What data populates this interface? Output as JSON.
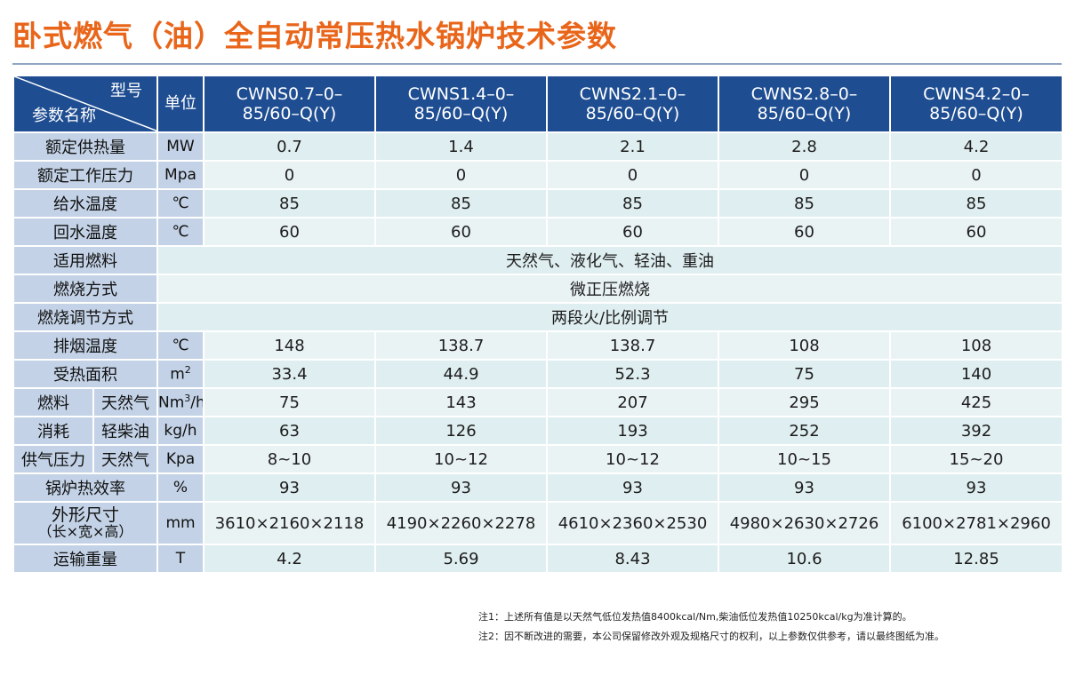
{
  "title": "卧式燃气（油）全自动常压热水锅炉技术参数",
  "header": {
    "corner_top": "型号",
    "corner_bottom": "参数名称",
    "unit": "单位",
    "models": [
      [
        "CWNS0.7–0–",
        "85/60–Q(Y)"
      ],
      [
        "CWNS1.4–0–",
        "85/60–Q(Y)"
      ],
      [
        "CWNS2.1–0–",
        "85/60–Q(Y)"
      ],
      [
        "CWNS2.8–0–",
        "85/60–Q(Y)"
      ],
      [
        "CWNS4.2–0–",
        "85/60–Q(Y)"
      ]
    ]
  },
  "rows": {
    "heat_output": {
      "label": "额定供热量",
      "unit": "MW",
      "values": [
        "0.7",
        "1.4",
        "2.1",
        "2.8",
        "4.2"
      ]
    },
    "working_pressure": {
      "label": "额定工作压力",
      "unit": "Mpa",
      "values": [
        "0",
        "0",
        "0",
        "0",
        "0"
      ]
    },
    "supply_temp": {
      "label": "给水温度",
      "unit": "℃",
      "values": [
        "85",
        "85",
        "85",
        "85",
        "85"
      ]
    },
    "return_temp": {
      "label": "回水温度",
      "unit": "℃",
      "values": [
        "60",
        "60",
        "60",
        "60",
        "60"
      ]
    },
    "fuel": {
      "label": "适用燃料",
      "value": "天然气、液化气、轻油、重油"
    },
    "combustion": {
      "label": "燃烧方式",
      "value": "微正压燃烧"
    },
    "regulation": {
      "label": "燃烧调节方式",
      "value": "两段火/比例调节"
    },
    "exhaust_temp": {
      "label": "排烟温度",
      "unit": "℃",
      "values": [
        "148",
        "138.7",
        "138.7",
        "108",
        "108"
      ]
    },
    "heating_area": {
      "label": "受热面积",
      "unit_base": "m",
      "unit_sup": "2",
      "values": [
        "33.4",
        "44.9",
        "52.3",
        "75",
        "140"
      ]
    },
    "gas_consumption": {
      "label": "燃料",
      "sub_label": "天然气",
      "unit_base": "Nm",
      "unit_sup": "3",
      "unit_tail": "/h",
      "values": [
        "75",
        "143",
        "207",
        "295",
        "425"
      ]
    },
    "oil_consumption": {
      "label": "消耗",
      "sub_label": "轻柴油",
      "unit": "kg/h",
      "values": [
        "63",
        "126",
        "193",
        "252",
        "392"
      ]
    },
    "gas_pressure": {
      "label": "供气压力",
      "sub_label": "天然气",
      "unit": "Kpa",
      "values": [
        "8~10",
        "10~12",
        "10~12",
        "10~15",
        "15~20"
      ]
    },
    "efficiency": {
      "label": "锅炉热效率",
      "unit": "%",
      "values": [
        "93",
        "93",
        "93",
        "93",
        "93"
      ]
    },
    "dimensions": {
      "label": "外形尺寸",
      "label2": "（长×宽×高）",
      "unit": "mm",
      "values": [
        "3610×2160×2118",
        "4190×2260×2278",
        "4610×2360×2530",
        "4980×2630×2726",
        "6100×2781×2960"
      ]
    },
    "weight": {
      "label": "运输重量",
      "unit": "T",
      "values": [
        "4.2",
        "5.69",
        "8.43",
        "10.6",
        "12.85"
      ]
    }
  },
  "notes": [
    "注1：上述所有值是以天然气低位发热值8400kcal/Nm,柴油低位发热值10250kcal/kg为准计算的。",
    "注2：因不断改进的需要，本公司保留修改外观及规格尺寸的权利，以上参数仅供参考，请以最终图纸为准。"
  ],
  "colors": {
    "title": "#e8651a",
    "header_bg": "#1e4d91",
    "label_bg": "#c3d2e6",
    "value_bg": "#dfeef0"
  }
}
